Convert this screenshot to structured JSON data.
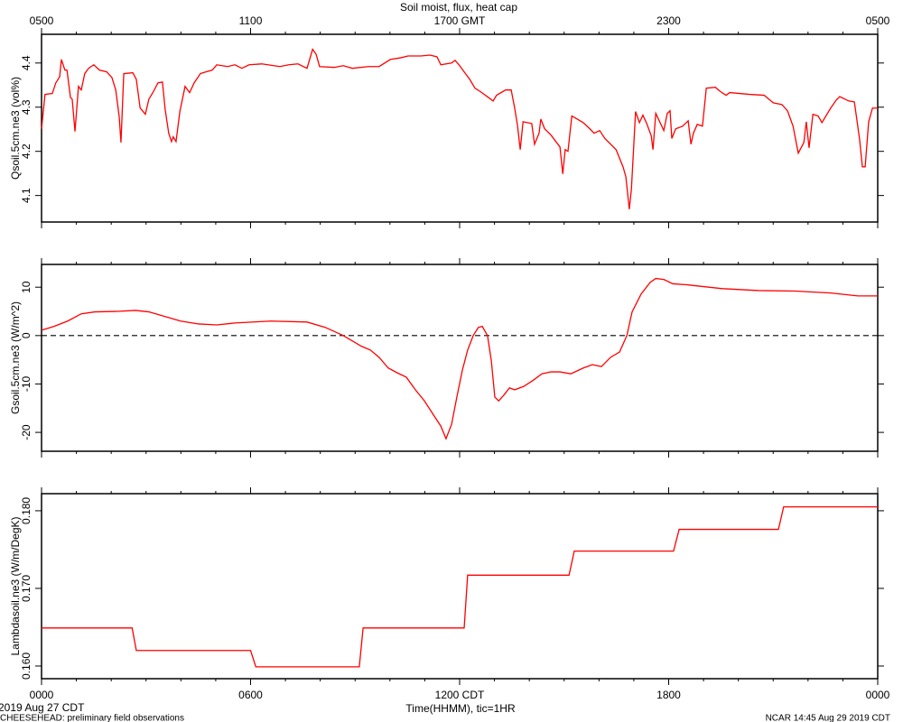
{
  "title": "Soil moist, flux, heat cap",
  "xlabel": "Time(HHMM), tic=1HR",
  "date_label": "2019 Aug 27 CDT",
  "footer_left": "CHEESEHEAD: preliminary field observations",
  "footer_right": "NCAR 14:45 Aug 29 2019 CDT",
  "chart_data": [
    {
      "type": "line",
      "ylabel": "Qsoil.5cm.ne3 (vol%)",
      "color": "#ff0000",
      "xlim": [
        0,
        24
      ],
      "xticks": [
        0,
        6,
        12,
        18,
        24
      ],
      "x2ticks": [
        {
          "value": 0,
          "label": "0500"
        },
        {
          "value": 6,
          "label": "1100"
        },
        {
          "value": 12,
          "label": "1700 GMT"
        },
        {
          "value": 18,
          "label": "2300"
        },
        {
          "value": 24,
          "label": "0500"
        }
      ],
      "xminor_ticks": [
        0,
        1,
        2,
        3,
        4,
        5,
        6,
        7,
        8,
        9,
        10,
        11,
        12,
        13,
        14,
        15,
        16,
        17,
        18,
        19,
        20,
        21,
        22,
        23,
        24
      ],
      "ylim": [
        4.04,
        4.465
      ],
      "yticks": [
        4.1,
        4.2,
        4.3,
        4.4
      ],
      "x": [
        0,
        0.1,
        0.31,
        0.41,
        0.52,
        0.57,
        0.67,
        0.73,
        0.83,
        0.88,
        0.96,
        1.06,
        1.14,
        1.24,
        1.35,
        1.5,
        1.66,
        1.87,
        2.02,
        2.13,
        2.23,
        2.28,
        2.36,
        2.62,
        2.72,
        2.83,
        2.98,
        3.08,
        3.21,
        3.34,
        3.47,
        3.55,
        3.65,
        3.73,
        3.78,
        3.86,
        3.97,
        4.12,
        4.25,
        4.38,
        4.56,
        4.72,
        4.9,
        5.03,
        5.34,
        5.55,
        5.75,
        5.96,
        6.32,
        6.84,
        7.1,
        7.36,
        7.62,
        7.78,
        7.88,
        7.98,
        8.4,
        8.66,
        8.92,
        9.38,
        9.69,
        10.01,
        10.32,
        10.52,
        10.89,
        11.15,
        11.35,
        11.46,
        11.77,
        11.87,
        11.98,
        12.13,
        12.29,
        12.44,
        12.6,
        12.86,
        12.96,
        13.06,
        13.32,
        13.48,
        13.58,
        13.66,
        13.74,
        13.82,
        14.07,
        14.15,
        14.28,
        14.33,
        14.44,
        14.62,
        14.88,
        14.96,
        15.03,
        15.11,
        15.22,
        15.55,
        15.71,
        15.86,
        16.02,
        16.17,
        16.49,
        16.69,
        16.77,
        16.87,
        16.93,
        17.05,
        17.16,
        17.26,
        17.37,
        17.5,
        17.55,
        17.63,
        17.86,
        17.96,
        18.04,
        18.09,
        18.2,
        18.4,
        18.56,
        18.64,
        18.71,
        18.82,
        18.97,
        19.08,
        19.34,
        19.49,
        19.65,
        19.75,
        20.32,
        20.74,
        21.0,
        21.25,
        21.41,
        21.57,
        21.72,
        21.88,
        21.95,
        22.03,
        22.14,
        22.29,
        22.4,
        22.65,
        22.81,
        22.91,
        23.17,
        23.33,
        23.48,
        23.56,
        23.64,
        23.74,
        23.85,
        24.0
      ],
      "values": [
        4.251,
        4.329,
        4.331,
        4.355,
        4.369,
        4.408,
        4.384,
        4.384,
        4.322,
        4.318,
        4.245,
        4.347,
        4.339,
        4.376,
        4.388,
        4.396,
        4.384,
        4.38,
        4.367,
        4.339,
        4.278,
        4.22,
        4.376,
        4.378,
        4.363,
        4.298,
        4.284,
        4.318,
        4.335,
        4.355,
        4.357,
        4.294,
        4.241,
        4.222,
        4.233,
        4.222,
        4.29,
        4.347,
        4.333,
        4.355,
        4.376,
        4.38,
        4.384,
        4.396,
        4.392,
        4.396,
        4.388,
        4.396,
        4.398,
        4.392,
        4.396,
        4.398,
        4.388,
        4.431,
        4.42,
        4.392,
        4.39,
        4.394,
        4.388,
        4.392,
        4.392,
        4.408,
        4.412,
        4.416,
        4.416,
        4.418,
        4.414,
        4.396,
        4.4,
        4.406,
        4.396,
        4.38,
        4.363,
        4.343,
        4.335,
        4.32,
        4.314,
        4.327,
        4.339,
        4.339,
        4.298,
        4.259,
        4.204,
        4.267,
        4.263,
        4.216,
        4.241,
        4.273,
        4.251,
        4.237,
        4.21,
        4.149,
        4.204,
        4.2,
        4.28,
        4.265,
        4.253,
        4.241,
        4.247,
        4.229,
        4.204,
        4.165,
        4.143,
        4.069,
        4.114,
        4.29,
        4.265,
        4.282,
        4.263,
        4.235,
        4.204,
        4.286,
        4.247,
        4.286,
        4.292,
        4.229,
        4.251,
        4.257,
        4.269,
        4.216,
        4.241,
        4.261,
        4.257,
        4.343,
        4.345,
        4.335,
        4.327,
        4.333,
        4.329,
        4.327,
        4.31,
        4.306,
        4.292,
        4.257,
        4.196,
        4.22,
        4.267,
        4.208,
        4.284,
        4.28,
        4.265,
        4.298,
        4.316,
        4.324,
        4.314,
        4.312,
        4.227,
        4.165,
        4.165,
        4.267,
        4.298,
        4.298
      ]
    },
    {
      "type": "line",
      "ylabel": "Gsoil.5cm.ne3 (W/m^2)",
      "color": "#ff0000",
      "xlim": [
        0,
        24
      ],
      "xticks": [
        0,
        6,
        12,
        18,
        24
      ],
      "xminor_ticks": [
        0,
        1,
        2,
        3,
        4,
        5,
        6,
        7,
        8,
        9,
        10,
        11,
        12,
        13,
        14,
        15,
        16,
        17,
        18,
        19,
        20,
        21,
        22,
        23,
        24
      ],
      "ylim": [
        -23.9,
        14.7
      ],
      "yticks": [
        -20,
        -10,
        0,
        10
      ],
      "hline": 0,
      "x": [
        0,
        0.36,
        0.75,
        1.14,
        1.53,
        2.18,
        2.7,
        3.08,
        3.47,
        3.99,
        4.51,
        5.03,
        5.55,
        6.58,
        7.62,
        8.14,
        8.66,
        9.18,
        9.44,
        9.69,
        9.95,
        10.21,
        10.47,
        10.73,
        10.99,
        11.25,
        11.46,
        11.61,
        11.77,
        11.92,
        12.08,
        12.23,
        12.39,
        12.54,
        12.65,
        12.8,
        12.91,
        13.01,
        13.12,
        13.27,
        13.43,
        13.58,
        13.84,
        14.1,
        14.36,
        14.62,
        14.88,
        15.19,
        15.55,
        15.81,
        16.07,
        16.33,
        16.59,
        16.8,
        16.95,
        17.21,
        17.47,
        17.63,
        17.86,
        18.12,
        18.51,
        19.03,
        19.54,
        20.58,
        21.62,
        22.65,
        23.43,
        24.0
      ],
      "values": [
        1.1,
        1.9,
        3.0,
        4.5,
        4.9,
        5.0,
        5.2,
        4.9,
        4.1,
        3.0,
        2.4,
        2.2,
        2.6,
        3.0,
        2.8,
        1.7,
        0,
        -2.2,
        -3.0,
        -4.5,
        -6.7,
        -7.7,
        -8.6,
        -11.2,
        -13.5,
        -16.4,
        -18.7,
        -21.3,
        -18.3,
        -12.7,
        -7.1,
        -3.0,
        0,
        1.7,
        1.9,
        0,
        -5.2,
        -12.7,
        -13.5,
        -12.3,
        -10.8,
        -11.2,
        -10.5,
        -9.3,
        -7.9,
        -7.5,
        -7.5,
        -7.9,
        -6.7,
        -6.0,
        -6.4,
        -4.5,
        -3.4,
        0,
        4.9,
        8.6,
        11.0,
        11.8,
        11.6,
        10.7,
        10.5,
        10.1,
        9.7,
        9.3,
        9.2,
        8.8,
        8.2,
        8.2
      ]
    },
    {
      "type": "line",
      "ylabel": "Lambdasoil.ne3 (W/m/DegK)",
      "color": "#ff0000",
      "xlim": [
        0,
        24
      ],
      "xticks": [
        {
          "value": 0,
          "label": "0000"
        },
        {
          "value": 6,
          "label": "0600"
        },
        {
          "value": 12,
          "label": "1200 CDT"
        },
        {
          "value": 18,
          "label": "1800"
        },
        {
          "value": 24,
          "label": "0000"
        }
      ],
      "xminor_ticks": [
        0,
        1,
        2,
        3,
        4,
        5,
        6,
        7,
        8,
        9,
        10,
        11,
        12,
        13,
        14,
        15,
        16,
        17,
        18,
        19,
        20,
        21,
        22,
        23,
        24
      ],
      "ylim": [
        0.15837,
        0.1822
      ],
      "yticks": [
        {
          "value": 0.16,
          "label": "0.160"
        },
        {
          "value": 0.17,
          "label": "0.170"
        },
        {
          "value": 0.18,
          "label": "0.180"
        }
      ],
      "x": [
        0,
        2.6,
        2.72,
        6.0,
        6.15,
        9.12,
        9.23,
        12.13,
        12.23,
        15.14,
        15.29,
        18.14,
        18.3,
        21.15,
        21.3,
        24
      ],
      "values": [
        0.1649,
        0.1649,
        0.162,
        0.162,
        0.1599,
        0.1599,
        0.1649,
        0.1649,
        0.1717,
        0.1717,
        0.1748,
        0.1748,
        0.1776,
        0.1776,
        0.1805,
        0.1805
      ]
    }
  ]
}
